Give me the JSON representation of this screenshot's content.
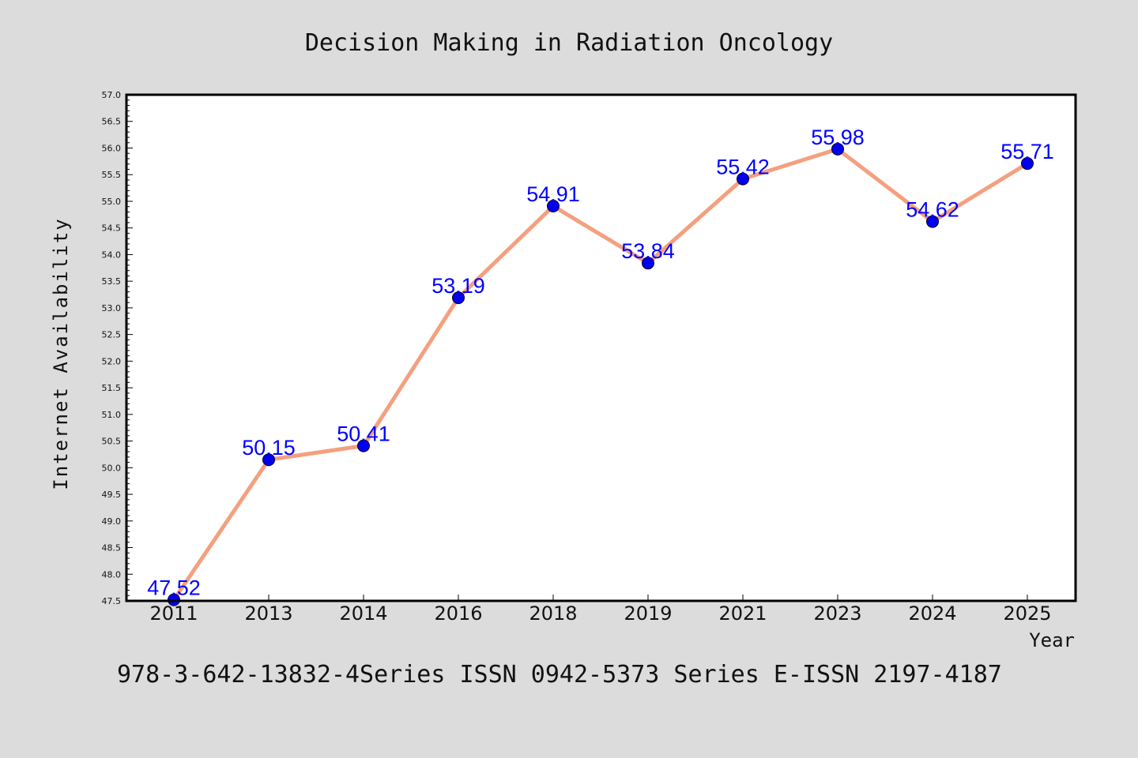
{
  "chart_data": {
    "type": "line",
    "title": "Decision Making in Radiation Oncology",
    "xlabel": "Year",
    "ylabel": "Internet Availability",
    "categories": [
      "2011",
      "2013",
      "2014",
      "2016",
      "2018",
      "2019",
      "2021",
      "2023",
      "2024",
      "2025"
    ],
    "series": [
      {
        "values": [
          47.52,
          50.15,
          50.41,
          53.19,
          54.91,
          53.84,
          55.42,
          55.98,
          54.62,
          55.71
        ],
        "data_labels": [
          "47.52",
          "50.15",
          "50.41",
          "53.19",
          "54.91",
          "53.84",
          "55.42",
          "55.98",
          "54.62",
          "55.71"
        ],
        "line_color": "#f4a07f",
        "marker_color": "#0000ee"
      }
    ],
    "ylim": [
      47.5,
      57.0
    ],
    "yticks": [
      "47.5",
      "48.0",
      "48.5",
      "49.0",
      "49.5",
      "50.0",
      "50.5",
      "51.0",
      "51.5",
      "52.0",
      "52.5",
      "53.0",
      "53.5",
      "54.0",
      "54.5",
      "55.0",
      "55.5",
      "56.0",
      "56.5",
      "57.0"
    ],
    "grid": false,
    "legend": "none",
    "background": "#dcdcdc",
    "plot_background": "#ffffff",
    "label_color": "#0000ff"
  },
  "footer": {
    "text": "978-3-642-13832-4Series ISSN 0942-5373 Series E-ISSN 2197-4187"
  }
}
